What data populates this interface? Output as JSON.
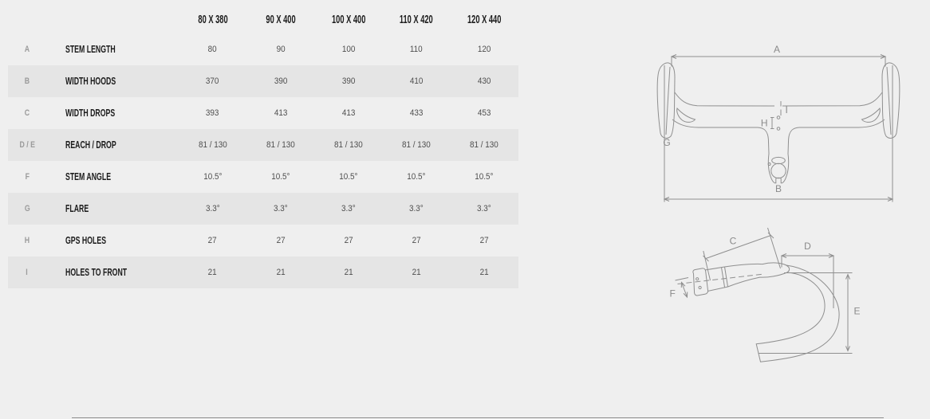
{
  "colors": {
    "page_bg": "#efefef",
    "row_band": "#e5e5e5",
    "drawing_line": "#8f8f8f",
    "heading_text": "#1c1c1c",
    "value_text": "#4e4e4e",
    "letter_text": "#9b9b9b"
  },
  "table": {
    "size_headers": [
      "80 X 380",
      "90 X 400",
      "100 X 400",
      "110 X 420",
      "120 X 440"
    ],
    "rows": [
      {
        "letter": "A",
        "label": "STEM LENGTH",
        "values": [
          "80",
          "90",
          "100",
          "110",
          "120"
        ],
        "banded": false
      },
      {
        "letter": "B",
        "label": "WIDTH HOODS",
        "values": [
          "370",
          "390",
          "390",
          "410",
          "430"
        ],
        "banded": true
      },
      {
        "letter": "C",
        "label": "WIDTH DROPS",
        "values": [
          "393",
          "413",
          "413",
          "433",
          "453"
        ],
        "banded": false
      },
      {
        "letter": "D / E",
        "label": "REACH / DROP",
        "values": [
          "81 / 130",
          "81 / 130",
          "81 / 130",
          "81 / 130",
          "81 / 130"
        ],
        "banded": true
      },
      {
        "letter": "F",
        "label": "STEM ANGLE",
        "values": [
          "10.5°",
          "10.5°",
          "10.5°",
          "10.5°",
          "10.5°"
        ],
        "banded": false
      },
      {
        "letter": "G",
        "label": "FLARE",
        "values": [
          "3.3°",
          "3.3°",
          "3.3°",
          "3.3°",
          "3.3°"
        ],
        "banded": true
      },
      {
        "letter": "H",
        "label": "GPS HOLES",
        "values": [
          "27",
          "27",
          "27",
          "27",
          "27"
        ],
        "banded": false
      },
      {
        "letter": "I",
        "label": "HOLES TO FRONT",
        "values": [
          "21",
          "21",
          "21",
          "21",
          "21"
        ],
        "banded": true
      }
    ]
  },
  "diagrams": {
    "top_view": {
      "labels": {
        "a": "A",
        "b": "B",
        "g": "G",
        "h": "H",
        "i": "I"
      }
    },
    "side_view": {
      "labels": {
        "c": "C",
        "d": "D",
        "e": "E",
        "f": "F"
      }
    }
  }
}
